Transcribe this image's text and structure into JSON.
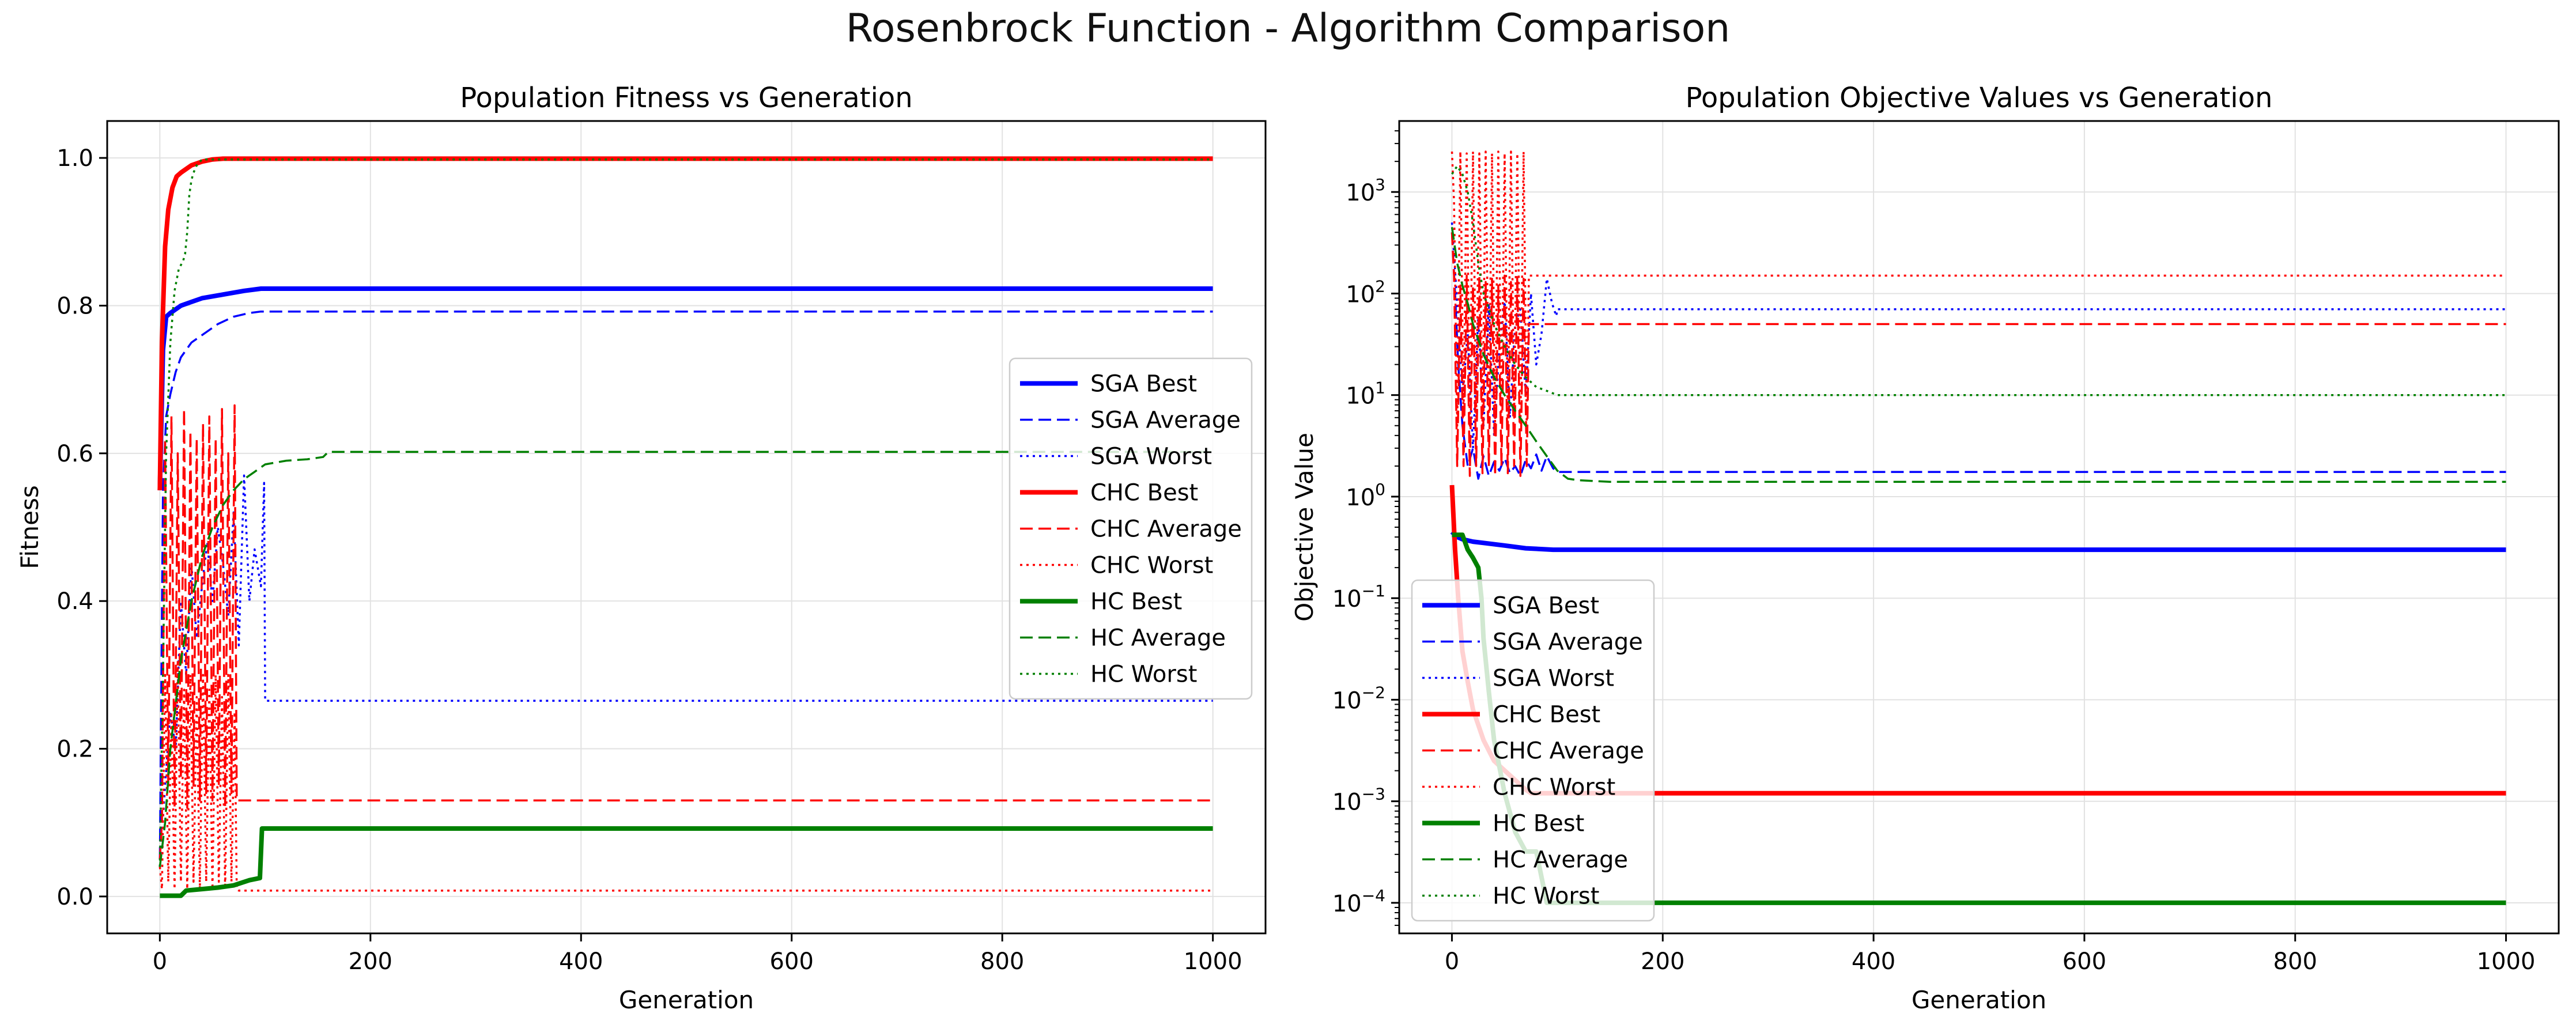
{
  "figure": {
    "suptitle": "Rosenbrock Function - Algorithm Comparison"
  },
  "colors": {
    "SGA": "#0000ff",
    "CHC": "#ff0000",
    "HC": "#008000"
  },
  "chart_data": [
    {
      "type": "line",
      "title": "Population Fitness vs Generation",
      "xlabel": "Generation",
      "ylabel": "Fitness",
      "xlim": [
        -50,
        1050
      ],
      "ylim": [
        -0.05,
        1.05
      ],
      "xticks": [
        0,
        200,
        400,
        600,
        800,
        1000
      ],
      "yticks": [
        0.0,
        0.2,
        0.4,
        0.6,
        0.8,
        1.0
      ],
      "ytick_labels": [
        "0.0",
        "0.2",
        "0.4",
        "0.6",
        "0.8",
        "1.0"
      ],
      "grid": true,
      "legend": "center-right",
      "series": [
        {
          "name": "SGA Best",
          "algo": "SGA",
          "style": "solid",
          "x": [
            0,
            3,
            6,
            10,
            15,
            20,
            30,
            40,
            60,
            80,
            96,
            1000
          ],
          "y": [
            0.55,
            0.74,
            0.785,
            0.79,
            0.795,
            0.8,
            0.805,
            0.81,
            0.815,
            0.82,
            0.823,
            0.823
          ]
        },
        {
          "name": "SGA Average",
          "algo": "SGA",
          "style": "dashed",
          "x": [
            0,
            3,
            6,
            10,
            15,
            20,
            30,
            40,
            55,
            70,
            85,
            96,
            1000
          ],
          "y": [
            0.05,
            0.55,
            0.65,
            0.68,
            0.71,
            0.73,
            0.75,
            0.76,
            0.775,
            0.785,
            0.79,
            0.792,
            0.792
          ]
        },
        {
          "name": "SGA Worst",
          "algo": "SGA",
          "style": "dotted",
          "x": [
            0,
            5,
            10,
            15,
            20,
            25,
            30,
            35,
            40,
            45,
            50,
            55,
            60,
            65,
            70,
            75,
            80,
            85,
            90,
            96,
            99,
            100,
            1000
          ],
          "y": [
            0.04,
            0.15,
            0.25,
            0.2,
            0.4,
            0.3,
            0.45,
            0.35,
            0.42,
            0.48,
            0.4,
            0.5,
            0.45,
            0.38,
            0.52,
            0.34,
            0.57,
            0.4,
            0.47,
            0.42,
            0.56,
            0.265,
            0.265
          ]
        },
        {
          "name": "CHC Best",
          "algo": "CHC",
          "style": "solid",
          "x": [
            0,
            2,
            5,
            8,
            12,
            16,
            20,
            25,
            30,
            40,
            50,
            60,
            1000
          ],
          "y": [
            0.55,
            0.75,
            0.88,
            0.93,
            0.96,
            0.975,
            0.98,
            0.985,
            0.99,
            0.995,
            0.998,
            0.999,
            0.999
          ]
        },
        {
          "name": "CHC Average",
          "algo": "CHC",
          "style": "dashed",
          "x": [
            0,
            2,
            5,
            8,
            11,
            14,
            17,
            20,
            23,
            26,
            29,
            32,
            35,
            38,
            41,
            44,
            47,
            50,
            53,
            56,
            59,
            62,
            65,
            68,
            71,
            73,
            75,
            1000
          ],
          "y": [
            0.05,
            0.1,
            0.62,
            0.15,
            0.65,
            0.12,
            0.6,
            0.16,
            0.66,
            0.12,
            0.63,
            0.15,
            0.62,
            0.13,
            0.64,
            0.14,
            0.65,
            0.13,
            0.62,
            0.15,
            0.66,
            0.12,
            0.6,
            0.14,
            0.665,
            0.13,
            0.13,
            0.13
          ]
        },
        {
          "name": "CHC Worst",
          "algo": "CHC",
          "style": "dotted",
          "x": [
            0,
            2,
            5,
            8,
            11,
            14,
            17,
            20,
            23,
            26,
            29,
            32,
            35,
            38,
            41,
            44,
            47,
            50,
            53,
            56,
            59,
            62,
            65,
            68,
            71,
            73,
            75,
            1000
          ],
          "y": [
            0.04,
            0.01,
            0.3,
            0.02,
            0.25,
            0.01,
            0.32,
            0.02,
            0.28,
            0.01,
            0.3,
            0.02,
            0.27,
            0.01,
            0.3,
            0.02,
            0.28,
            0.01,
            0.3,
            0.02,
            0.27,
            0.01,
            0.3,
            0.02,
            0.25,
            0.01,
            0.008,
            0.008
          ]
        },
        {
          "name": "HC Best",
          "algo": "HC",
          "style": "solid",
          "x": [
            0,
            20,
            25,
            40,
            55,
            70,
            85,
            95,
            97,
            1000
          ],
          "y": [
            0.001,
            0.001,
            0.008,
            0.01,
            0.012,
            0.015,
            0.022,
            0.025,
            0.092,
            0.092
          ]
        },
        {
          "name": "HC Average",
          "algo": "HC",
          "style": "dashed",
          "x": [
            0,
            5,
            10,
            20,
            30,
            40,
            50,
            60,
            70,
            80,
            90,
            100,
            120,
            140,
            155,
            160,
            1000
          ],
          "y": [
            0.04,
            0.1,
            0.2,
            0.32,
            0.4,
            0.46,
            0.5,
            0.53,
            0.55,
            0.565,
            0.575,
            0.585,
            0.59,
            0.592,
            0.595,
            0.602,
            0.602
          ]
        },
        {
          "name": "HC Worst",
          "algo": "HC",
          "style": "dotted",
          "x": [
            0,
            3,
            6,
            10,
            14,
            18,
            22,
            24,
            26,
            28,
            30,
            32,
            35,
            40,
            1000
          ],
          "y": [
            0.04,
            0.3,
            0.6,
            0.75,
            0.82,
            0.85,
            0.86,
            0.87,
            0.9,
            0.95,
            0.97,
            0.98,
            0.99,
            0.998,
            0.998
          ]
        }
      ]
    },
    {
      "type": "line",
      "title": "Population Objective Values vs Generation",
      "xlabel": "Generation",
      "ylabel": "Objective Value",
      "xlim": [
        -50,
        1050
      ],
      "yscale": "log",
      "ylim": [
        5e-05,
        5000
      ],
      "xticks": [
        0,
        200,
        400,
        600,
        800,
        1000
      ],
      "yticks": [
        0.0001,
        0.001,
        0.01,
        0.1,
        1,
        10,
        100,
        1000
      ],
      "ytick_labels": [
        [
          "10",
          "−4"
        ],
        [
          "10",
          "−3"
        ],
        [
          "10",
          "−2"
        ],
        [
          "10",
          "−1"
        ],
        [
          "10",
          "0"
        ],
        [
          "10",
          "1"
        ],
        [
          "10",
          "2"
        ],
        [
          "10",
          "3"
        ]
      ],
      "grid": true,
      "legend": "lower-left",
      "series": [
        {
          "name": "SGA Best",
          "algo": "SGA",
          "style": "solid",
          "x": [
            0,
            5,
            10,
            20,
            30,
            50,
            70,
            96,
            1000
          ],
          "y": [
            0.45,
            0.4,
            0.38,
            0.36,
            0.35,
            0.33,
            0.31,
            0.3,
            0.3
          ]
        },
        {
          "name": "SGA Average",
          "algo": "SGA",
          "style": "dashed",
          "x": [
            0,
            3,
            6,
            10,
            15,
            20,
            25,
            30,
            35,
            40,
            45,
            50,
            55,
            60,
            65,
            70,
            75,
            80,
            85,
            90,
            96,
            100,
            1000
          ],
          "y": [
            400,
            100,
            20,
            5,
            2,
            3,
            1.5,
            2.5,
            1.6,
            2.2,
            1.8,
            2.4,
            1.7,
            2.0,
            1.6,
            2.3,
            1.9,
            2.6,
            1.8,
            2.5,
            1.9,
            1.75,
            1.75
          ]
        },
        {
          "name": "SGA Worst",
          "algo": "SGA",
          "style": "dotted",
          "x": [
            0,
            5,
            10,
            15,
            20,
            25,
            30,
            35,
            40,
            45,
            50,
            55,
            60,
            65,
            70,
            75,
            80,
            85,
            90,
            95,
            99,
            100,
            1000
          ],
          "y": [
            500,
            80,
            10,
            40,
            3,
            60,
            5,
            80,
            4,
            30,
            90,
            6,
            50,
            70,
            10,
            100,
            20,
            40,
            140,
            80,
            60,
            70,
            70
          ]
        },
        {
          "name": "CHC Best",
          "algo": "CHC",
          "style": "solid",
          "x": [
            0,
            3,
            6,
            10,
            15,
            20,
            30,
            40,
            55,
            70,
            75,
            1000
          ],
          "y": [
            1.3,
            0.3,
            0.1,
            0.03,
            0.015,
            0.008,
            0.004,
            0.0025,
            0.0018,
            0.0013,
            0.0012,
            0.0012
          ]
        },
        {
          "name": "CHC Average",
          "algo": "CHC",
          "style": "dashed",
          "x": [
            0,
            2,
            5,
            8,
            11,
            14,
            17,
            20,
            23,
            26,
            29,
            32,
            35,
            38,
            41,
            44,
            47,
            50,
            53,
            56,
            59,
            62,
            65,
            68,
            71,
            73,
            75,
            1000
          ],
          "y": [
            400,
            150,
            2,
            120,
            2,
            150,
            1.6,
            120,
            2,
            150,
            1.7,
            130,
            2,
            140,
            1.6,
            120,
            2,
            150,
            1.7,
            130,
            2,
            150,
            1.6,
            140,
            2,
            50,
            50,
            50
          ]
        },
        {
          "name": "CHC Worst",
          "algo": "CHC",
          "style": "dotted",
          "x": [
            0,
            2,
            5,
            8,
            11,
            14,
            17,
            20,
            23,
            26,
            29,
            32,
            35,
            38,
            41,
            44,
            47,
            50,
            53,
            56,
            59,
            62,
            65,
            68,
            71,
            73,
            75,
            1000
          ],
          "y": [
            2500,
            800,
            5,
            2500,
            6,
            2400,
            5,
            2500,
            6,
            2400,
            5,
            2500,
            6,
            2400,
            5,
            2500,
            6,
            2400,
            5,
            2500,
            6,
            2400,
            5,
            2500,
            5,
            150,
            150,
            150
          ]
        },
        {
          "name": "HC Best",
          "algo": "HC",
          "style": "solid",
          "x": [
            0,
            10,
            15,
            20,
            25,
            28,
            30,
            35,
            40,
            50,
            60,
            70,
            80,
            90,
            100,
            1000
          ],
          "y": [
            0.42,
            0.42,
            0.3,
            0.25,
            0.2,
            0.1,
            0.04,
            0.012,
            0.004,
            0.0012,
            0.0005,
            0.00032,
            0.00032,
            0.0001,
            0.0001,
            0.0001
          ]
        },
        {
          "name": "HC Average",
          "algo": "HC",
          "style": "dashed",
          "x": [
            0,
            5,
            10,
            15,
            20,
            30,
            40,
            50,
            60,
            70,
            80,
            90,
            100,
            110,
            120,
            150,
            1000
          ],
          "y": [
            450,
            200,
            120,
            80,
            50,
            25,
            15,
            10,
            7,
            5,
            3.5,
            2.5,
            1.8,
            1.5,
            1.45,
            1.4,
            1.4
          ]
        },
        {
          "name": "HC Worst",
          "algo": "HC",
          "style": "dotted",
          "x": [
            0,
            5,
            10,
            15,
            20,
            25,
            30,
            40,
            50,
            60,
            70,
            80,
            90,
            100,
            101,
            1000
          ],
          "y": [
            1500,
            1800,
            1500,
            1000,
            500,
            200,
            100,
            50,
            30,
            20,
            15,
            12,
            11,
            10,
            10,
            10
          ]
        }
      ]
    }
  ]
}
